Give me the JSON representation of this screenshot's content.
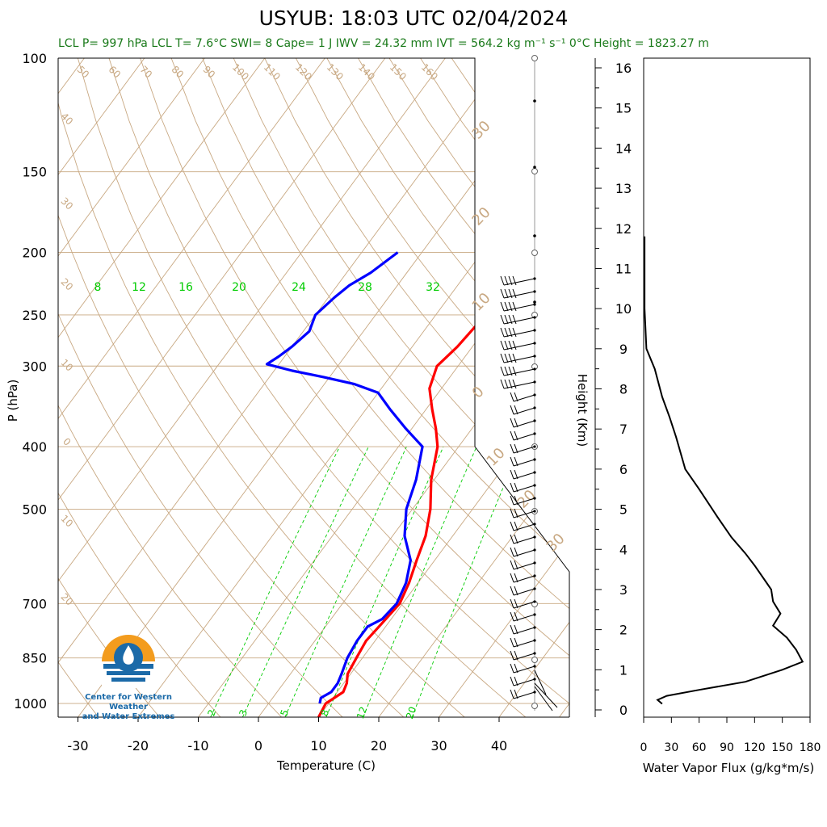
{
  "title": "USYUB: 18:03 UTC 02/04/2024",
  "stats": "LCL P= 997 hPa  LCL T= 7.6°C  SWI= 8  Cape= 1 J  IWV = 24.32 mm  IVT = 564.2 kg m⁻¹ s⁻¹  0°C Height = 1823.27 m",
  "logo": {
    "icon": "water-drop-sun-icon",
    "line1": "Center for Western Weather",
    "line2": "and Water Extremes",
    "colors": {
      "sun": "#f39c1e",
      "drop": "#1b6aa8",
      "water": "#1b6aa8"
    }
  },
  "colors": {
    "temperature": "#ff0000",
    "dewpoint": "#0000ff",
    "isotherm": "#c8a882",
    "mixing_ratio": "#00cc00",
    "vapor_flux": "#000000",
    "stats_text": "#1a7a1a"
  },
  "chart_data": [
    {
      "type": "line",
      "subtype": "skew-T log-P sounding",
      "xlabel": "Temperature (C)",
      "ylabel": "P (hPa)",
      "x_ticks": [
        "-30",
        "-20",
        "-10",
        "0",
        "10",
        "20",
        "30",
        "40"
      ],
      "y_ticks": [
        "100",
        "150",
        "200",
        "250",
        "300",
        "400",
        "500",
        "700",
        "850",
        "1000"
      ],
      "xlim": [
        -34,
        44
      ],
      "ylim": [
        1050,
        100
      ],
      "y_scale": "log",
      "dry_adiabat_labels": [
        "50",
        "60",
        "70",
        "80",
        "90",
        "100",
        "110",
        "120",
        "130",
        "140",
        "150",
        "160"
      ],
      "isotherm_side_labels_left": [
        "40",
        "30",
        "20",
        "10",
        "0",
        "10",
        "20"
      ],
      "isotherm_side_labels_right": [
        "30",
        "20",
        "10",
        "0",
        "10",
        "20",
        "30"
      ],
      "mixing_ratio_top_labels": [
        "8",
        "12",
        "16",
        "20",
        "24",
        "28",
        "32"
      ],
      "mixing_ratio_bottom_labels": [
        "2",
        "3",
        "5",
        "8",
        "12",
        "20"
      ],
      "series": [
        {
          "name": "Temperature",
          "points": [
            [
              1050,
              10
            ],
            [
              1000,
              9.5
            ],
            [
              960,
              11
            ],
            [
              930,
              10.5
            ],
            [
              900,
              9.5
            ],
            [
              850,
              9
            ],
            [
              800,
              8.5
            ],
            [
              750,
              9
            ],
            [
              700,
              9.5
            ],
            [
              650,
              8.5
            ],
            [
              600,
              7
            ],
            [
              550,
              5.5
            ],
            [
              500,
              3
            ],
            [
              450,
              -0.5
            ],
            [
              400,
              -3.5
            ],
            [
              375,
              -6
            ],
            [
              350,
              -9
            ],
            [
              325,
              -12
            ],
            [
              300,
              -13.5
            ],
            [
              280,
              -12.5
            ],
            [
              260,
              -12
            ],
            [
              240,
              -11.5
            ],
            [
              225,
              -10.5
            ],
            [
              215,
              -8
            ],
            [
              210,
              -3
            ],
            [
              200,
              0
            ]
          ]
        },
        {
          "name": "Dewpoint",
          "points": [
            [
              1000,
              8.5
            ],
            [
              980,
              8
            ],
            [
              960,
              9
            ],
            [
              930,
              9
            ],
            [
              900,
              8.5
            ],
            [
              850,
              7.5
            ],
            [
              800,
              7
            ],
            [
              760,
              7
            ],
            [
              740,
              8.5
            ],
            [
              700,
              9
            ],
            [
              650,
              8
            ],
            [
              600,
              6
            ],
            [
              550,
              2
            ],
            [
              500,
              -1
            ],
            [
              450,
              -3
            ],
            [
              400,
              -6
            ],
            [
              375,
              -11
            ],
            [
              350,
              -16
            ],
            [
              330,
              -20
            ],
            [
              320,
              -25
            ],
            [
              312,
              -31
            ],
            [
              305,
              -37
            ],
            [
              298,
              -42
            ],
            [
              290,
              -41
            ],
            [
              280,
              -40
            ],
            [
              265,
              -39
            ],
            [
              250,
              -40
            ],
            [
              235,
              -39
            ],
            [
              225,
              -38
            ],
            [
              215,
              -36
            ],
            [
              200,
              -34
            ]
          ]
        }
      ],
      "wind_barbs": "right margin column"
    },
    {
      "type": "line",
      "xlabel": "Water Vapor Flux (g/kg*m/s)",
      "ylabel": "Height (Km)",
      "x_ticks": [
        "0",
        "30",
        "60",
        "90",
        "120",
        "150",
        "180"
      ],
      "y_ticks": [
        "0",
        "1",
        "2",
        "3",
        "4",
        "5",
        "6",
        "7",
        "8",
        "9",
        "10",
        "11",
        "12",
        "13",
        "14",
        "15",
        "16"
      ],
      "xlim": [
        0,
        180
      ],
      "ylim": [
        0,
        16.5
      ],
      "series": [
        {
          "name": "Water Vapor Flux",
          "points": [
            [
              20,
              0.15
            ],
            [
              15,
              0.25
            ],
            [
              25,
              0.35
            ],
            [
              60,
              0.5
            ],
            [
              110,
              0.7
            ],
            [
              150,
              1.0
            ],
            [
              172,
              1.2
            ],
            [
              165,
              1.5
            ],
            [
              155,
              1.8
            ],
            [
              140,
              2.1
            ],
            [
              148,
              2.4
            ],
            [
              140,
              2.7
            ],
            [
              138,
              3.0
            ],
            [
              132,
              3.2
            ],
            [
              120,
              3.6
            ],
            [
              110,
              3.9
            ],
            [
              95,
              4.3
            ],
            [
              80,
              4.8
            ],
            [
              60,
              5.5
            ],
            [
              45,
              6.0
            ],
            [
              35,
              6.8
            ],
            [
              28,
              7.3
            ],
            [
              20,
              7.8
            ],
            [
              12,
              8.5
            ],
            [
              3,
              9.0
            ],
            [
              1,
              10
            ],
            [
              1,
              11
            ],
            [
              1,
              11.8
            ]
          ]
        }
      ]
    }
  ]
}
